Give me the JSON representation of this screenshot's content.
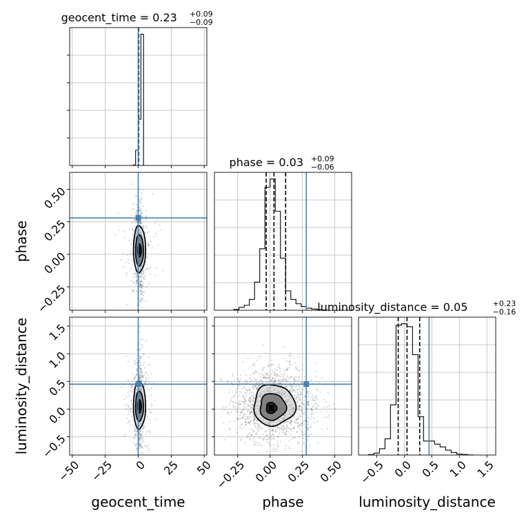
{
  "chart_data": {
    "type": "corner",
    "parameters": [
      "geocent_time",
      "phase",
      "luminosity_distance"
    ],
    "axis_labels": {
      "geocent_time": "geocent_time",
      "phase": "phase",
      "luminosity_distance": "luminosity_distance"
    },
    "ranges": {
      "geocent_time": [
        -52,
        52
      ],
      "phase": [
        -0.43,
        0.63
      ],
      "luminosity_distance": [
        -0.83,
        1.66
      ]
    },
    "ticks": {
      "geocent_time": {
        "values": [
          -50,
          -25,
          0,
          25,
          50
        ],
        "labels": [
          "−50",
          "−25",
          "0",
          "25",
          "50"
        ]
      },
      "phase": {
        "values": [
          -0.25,
          0.0,
          0.25,
          0.5
        ],
        "labels": [
          "−0.25",
          "0.00",
          "0.25",
          "0.50"
        ]
      },
      "luminosity_distance": {
        "values": [
          -0.5,
          0.0,
          0.5,
          1.0,
          1.5
        ],
        "labels": [
          "−0.5",
          "0.0",
          "0.5",
          "1.0",
          "1.5"
        ]
      }
    },
    "injection": {
      "geocent_time": 0.0,
      "phase": 0.28,
      "luminosity_distance": 0.45
    },
    "truth_color": "#4682b4",
    "titles": {
      "geocent_time": {
        "prefix": "geocent_time = ",
        "median": "0.23",
        "plus": "+0.09",
        "minus": "−0.09"
      },
      "phase": {
        "prefix": "phase = ",
        "median": "0.03",
        "plus": "+0.09",
        "minus": "−0.06"
      },
      "luminosity_distance": {
        "prefix": "luminosity_distance = ",
        "median": "0.05",
        "plus": "+0.23",
        "minus": "−0.16"
      }
    },
    "marginals": {
      "geocent_time": {
        "bin_edges": [
          -4.0,
          -2.0,
          0.0,
          2.0,
          4.0,
          6.0
        ],
        "counts": [
          0.02,
          0.82,
          2.5,
          7.1,
          0.0
        ],
        "quantiles": [
          0.14,
          0.23,
          0.32
        ]
      },
      "phase": {
        "bin_edges": [
          -0.28,
          -0.24,
          -0.2,
          -0.16,
          -0.12,
          -0.08,
          -0.04,
          0.0,
          0.04,
          0.08,
          0.12,
          0.16,
          0.2,
          0.24,
          0.28,
          0.32,
          0.36,
          0.4,
          0.44
        ],
        "counts": [
          0.04,
          0.14,
          0.24,
          0.52,
          1.35,
          2.95,
          5.9,
          6.3,
          4.75,
          2.5,
          0.93,
          0.52,
          0.31,
          0.18,
          0.1,
          0.06,
          0.03,
          0.01
        ],
        "quantiles": [
          -0.03,
          0.03,
          0.12
        ]
      },
      "luminosity_distance": {
        "bin_edges": [
          -0.65,
          -0.55,
          -0.45,
          -0.35,
          -0.25,
          -0.15,
          -0.05,
          0.05,
          0.15,
          0.25,
          0.35,
          0.45,
          0.55,
          0.65,
          0.75,
          0.85,
          0.95,
          1.05,
          1.15,
          1.25
        ],
        "counts": [
          0.03,
          0.13,
          0.43,
          1.1,
          3.4,
          8.8,
          8.9,
          8.7,
          6.8,
          2.6,
          0.95,
          0.95,
          0.74,
          0.55,
          0.33,
          0.17,
          0.07,
          0.04,
          0.01
        ],
        "quantiles": [
          -0.11,
          0.05,
          0.28
        ]
      }
    },
    "joint_contours": {
      "geocent_time|phase": [
        {
          "level": 1,
          "center": [
            0.9,
            0.03
          ],
          "sx": 1.4,
          "sy": 0.05
        },
        {
          "level": 2,
          "center": [
            0.9,
            0.03
          ],
          "sx": 3.0,
          "sy": 0.12
        },
        {
          "level": 3,
          "center": [
            0.9,
            0.04
          ],
          "sx": 4.6,
          "sy": 0.18
        }
      ],
      "geocent_time|luminosity_distance": [
        {
          "level": 1,
          "center": [
            0.9,
            0.05
          ],
          "sx": 1.4,
          "sy": 0.12
        },
        {
          "level": 2,
          "center": [
            0.9,
            0.05
          ],
          "sx": 3.0,
          "sy": 0.27
        },
        {
          "level": 3,
          "center": [
            0.9,
            0.07
          ],
          "sx": 4.6,
          "sy": 0.43
        }
      ],
      "phase|luminosity_distance": [
        {
          "level": 1,
          "center": [
            0.01,
            0.02
          ],
          "sx": 0.04,
          "sy": 0.1
        },
        {
          "level": 2,
          "center": [
            0.02,
            0.04
          ],
          "sx": 0.1,
          "sy": 0.24
        },
        {
          "level": 3,
          "center": [
            0.03,
            0.07
          ],
          "sx": 0.16,
          "sy": 0.37
        }
      ]
    }
  }
}
